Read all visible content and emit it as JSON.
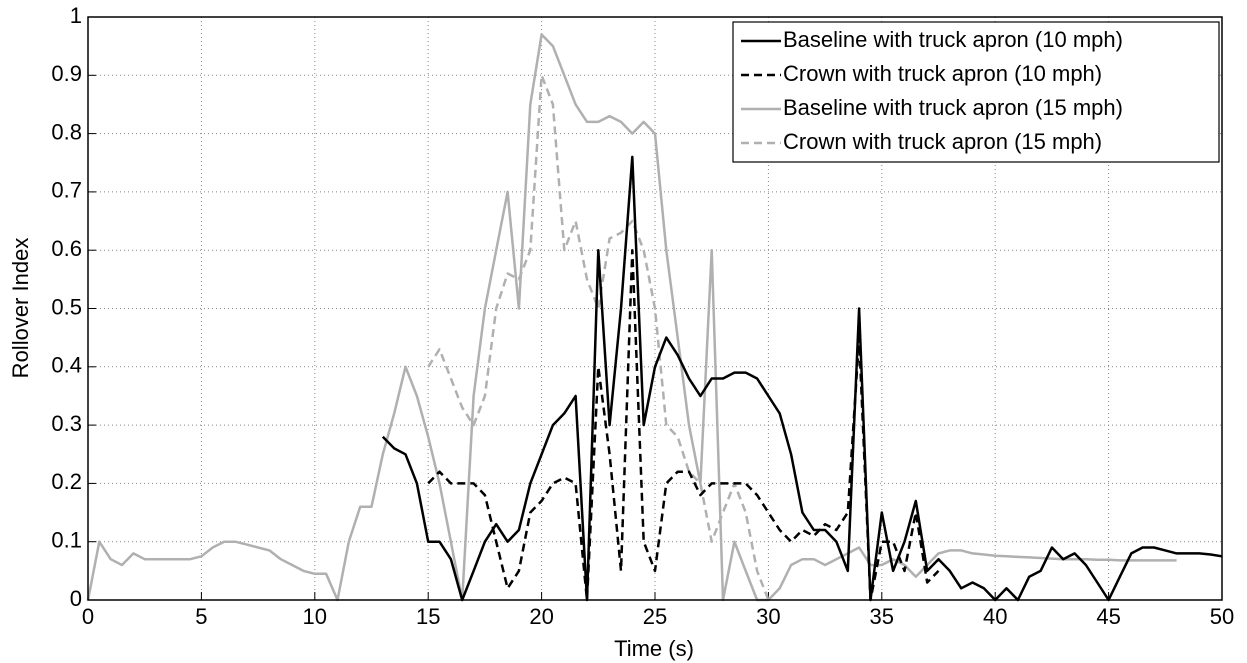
{
  "chart_data": {
    "type": "line",
    "xlabel": "Time (s)",
    "ylabel": "Rollover Index",
    "x": [
      0,
      0.5,
      1,
      1.5,
      2,
      2.5,
      3,
      3.5,
      4,
      4.5,
      5,
      5.5,
      6,
      6.5,
      7,
      7.5,
      8,
      8.5,
      9,
      9.5,
      10,
      10.5,
      11,
      11.5,
      12,
      12.5,
      13,
      13.5,
      14,
      14.5,
      15,
      15.5,
      16,
      16.5,
      17,
      17.5,
      18,
      18.5,
      19,
      19.5,
      20,
      20.5,
      21,
      21.5,
      22,
      22.5,
      23,
      23.5,
      24,
      24.5,
      25,
      25.5,
      26,
      26.5,
      27,
      27.5,
      28,
      28.5,
      29,
      29.5,
      30,
      30.5,
      31,
      31.5,
      32,
      32.5,
      33,
      33.5,
      34,
      34.5,
      35,
      35.5,
      36,
      36.5,
      37,
      37.5,
      38,
      38.5,
      39,
      39.5,
      40,
      40.5,
      41,
      41.5,
      42,
      42.5,
      43,
      43.5,
      44,
      44.5,
      45,
      45.5,
      46,
      46.5,
      47,
      47.5,
      48,
      48.5,
      49,
      49.5,
      50
    ],
    "series": [
      {
        "name": "Baseline with truck apron (10 mph)",
        "color": "#000000",
        "dashed": false,
        "values": [
          null,
          null,
          null,
          null,
          null,
          null,
          null,
          null,
          null,
          null,
          null,
          null,
          null,
          null,
          null,
          null,
          null,
          null,
          null,
          null,
          null,
          null,
          null,
          null,
          null,
          null,
          0.28,
          0.26,
          0.25,
          0.2,
          0.1,
          0.1,
          0.07,
          0.0,
          0.05,
          0.1,
          0.13,
          0.1,
          0.12,
          0.2,
          0.25,
          0.3,
          0.32,
          0.35,
          0.0,
          0.6,
          0.3,
          0.5,
          0.76,
          0.3,
          0.4,
          0.45,
          0.42,
          0.38,
          0.35,
          0.38,
          0.38,
          0.39,
          0.39,
          0.38,
          0.35,
          0.32,
          0.25,
          0.15,
          0.12,
          0.12,
          0.1,
          0.05,
          0.5,
          0.0,
          0.15,
          0.05,
          0.1,
          0.17,
          0.05,
          0.07,
          0.05,
          0.02,
          0.03,
          0.02,
          0.0,
          0.02,
          0.0,
          0.04,
          0.05,
          0.09,
          0.07,
          0.08,
          0.06,
          0.03,
          0.0,
          0.04,
          0.08,
          0.09,
          0.09,
          0.085,
          0.08,
          0.08,
          0.08,
          0.078,
          0.075
        ]
      },
      {
        "name": "Crown with truck apron (10 mph)",
        "color": "#000000",
        "dashed": true,
        "values": [
          null,
          null,
          null,
          null,
          null,
          null,
          null,
          null,
          null,
          null,
          null,
          null,
          null,
          null,
          null,
          null,
          null,
          null,
          null,
          null,
          null,
          null,
          null,
          null,
          null,
          null,
          null,
          null,
          null,
          null,
          0.2,
          0.22,
          0.2,
          0.2,
          0.2,
          0.18,
          0.1,
          0.02,
          0.05,
          0.15,
          0.17,
          0.2,
          0.21,
          0.2,
          0.0,
          0.4,
          0.25,
          0.05,
          0.6,
          0.1,
          0.05,
          0.2,
          0.22,
          0.22,
          0.18,
          0.2,
          0.2,
          0.2,
          0.2,
          0.18,
          0.15,
          0.12,
          0.1,
          0.12,
          0.11,
          0.13,
          0.12,
          0.15,
          0.45,
          0.0,
          0.1,
          0.1,
          0.05,
          0.15,
          0.03,
          0.05,
          null,
          null,
          null,
          null,
          null,
          null,
          null,
          null,
          null,
          null,
          null,
          null,
          null,
          null,
          null,
          null,
          null,
          null,
          null,
          null,
          null,
          null,
          null,
          null,
          null
        ]
      },
      {
        "name": "Baseline with truck apron (15 mph)",
        "color": "#b0b0b0",
        "dashed": false,
        "values": [
          0.0,
          0.1,
          0.07,
          0.06,
          0.08,
          0.07,
          0.07,
          0.07,
          0.07,
          0.07,
          0.075,
          0.09,
          0.1,
          0.1,
          0.095,
          0.09,
          0.085,
          0.07,
          0.06,
          0.05,
          0.045,
          0.045,
          0.0,
          0.1,
          0.16,
          0.16,
          0.25,
          0.32,
          0.4,
          0.35,
          0.28,
          0.2,
          0.1,
          0.0,
          0.35,
          0.5,
          0.6,
          0.7,
          0.5,
          0.85,
          0.97,
          0.95,
          0.9,
          0.85,
          0.82,
          0.82,
          0.83,
          0.82,
          0.8,
          0.82,
          0.8,
          0.6,
          0.45,
          0.3,
          0.2,
          0.6,
          0.0,
          0.1,
          0.05,
          0.0,
          0.0,
          0.02,
          0.06,
          0.07,
          0.07,
          0.06,
          0.07,
          0.08,
          0.09,
          0.06,
          0.06,
          0.07,
          0.06,
          0.04,
          0.06,
          0.08,
          0.085,
          0.085,
          0.08,
          0.078,
          0.076,
          0.075,
          0.074,
          0.073,
          0.072,
          0.071,
          0.07,
          0.07,
          0.07,
          0.069,
          0.069,
          0.068,
          0.068,
          0.068,
          0.068,
          0.068,
          0.068,
          null,
          null,
          null,
          null
        ]
      },
      {
        "name": "Crown with truck apron (15 mph)",
        "color": "#b0b0b0",
        "dashed": true,
        "values": [
          null,
          null,
          null,
          null,
          null,
          null,
          null,
          null,
          null,
          null,
          null,
          null,
          null,
          null,
          null,
          null,
          null,
          null,
          null,
          null,
          null,
          null,
          null,
          null,
          null,
          null,
          null,
          null,
          null,
          null,
          0.4,
          0.43,
          0.38,
          0.33,
          0.3,
          0.35,
          0.5,
          0.56,
          0.55,
          0.6,
          0.9,
          0.85,
          0.6,
          0.65,
          0.55,
          0.5,
          0.62,
          0.63,
          0.65,
          0.6,
          0.5,
          0.3,
          0.28,
          0.22,
          0.2,
          0.1,
          0.15,
          0.2,
          0.15,
          0.05,
          0.0,
          null,
          null,
          null,
          null,
          null,
          null,
          null,
          null,
          null,
          null,
          null,
          null,
          null,
          null,
          null,
          null,
          null,
          null,
          null,
          null,
          null,
          null,
          null,
          null,
          null,
          null,
          null,
          null,
          null,
          null,
          null,
          null,
          null,
          null,
          null,
          null,
          null,
          null,
          null,
          null
        ]
      }
    ],
    "xlim": [
      0,
      50
    ],
    "xticks": [
      0,
      5,
      10,
      15,
      20,
      25,
      30,
      35,
      40,
      45,
      50
    ],
    "ylim": [
      0,
      1
    ],
    "yticks": [
      0,
      0.1,
      0.2,
      0.3,
      0.4,
      0.5,
      0.6,
      0.7,
      0.8,
      0.9,
      1
    ],
    "grid": true,
    "legend": "upper right"
  }
}
